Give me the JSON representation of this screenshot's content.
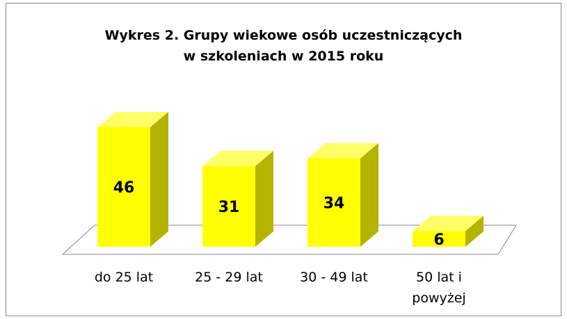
{
  "chart_data": {
    "type": "bar3d",
    "title": "Wykres 2. Grupy wiekowe osób uczestniczących w szkoleniach w 2015 roku",
    "categories": [
      "do 25 lat",
      "25 - 29 lat",
      "30 - 49 lat",
      "50 lat i powyżej"
    ],
    "values": [
      46,
      31,
      34,
      6
    ],
    "color": "#ffff00"
  }
}
